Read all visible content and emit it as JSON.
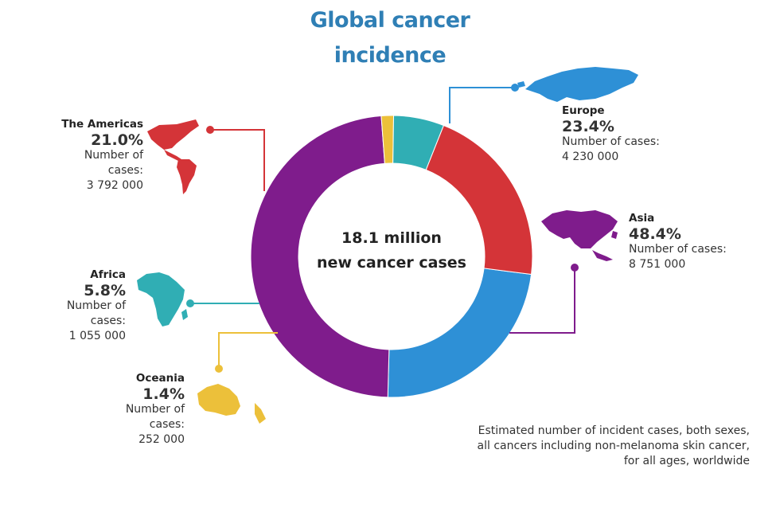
{
  "title": [
    "Global cancer",
    "incidence"
  ],
  "center": [
    "18.1 million",
    "new cancer cases"
  ],
  "footnote": [
    "Estimated number of incident cases, both sexes,",
    "all cancers including non-melanoma skin cancer,",
    "for all ages, worldwide"
  ],
  "chart_data": {
    "type": "pie",
    "donut": true,
    "title": "Global cancer incidence",
    "total_label": "18.1 million new cancer cases",
    "categories": [
      "Europe",
      "Asia",
      "Oceania",
      "Africa",
      "The Americas"
    ],
    "values": [
      23.4,
      48.4,
      1.4,
      5.8,
      21.0
    ],
    "cases": [
      "4 230 000",
      "8 751 000",
      "252 000",
      "1 055 000",
      "3 792 000"
    ],
    "colors": [
      "#2e90d6",
      "#7f1c8c",
      "#ecc03a",
      "#30aeb4",
      "#d43438"
    ],
    "legend": "none"
  },
  "labels": {
    "americas": {
      "region": "The Americas",
      "pct": "21.0%",
      "caption": "Number of cases:",
      "cases": "3 792 000"
    },
    "europe": {
      "region": "Europe",
      "pct": "23.4%",
      "caption": "Number of cases:",
      "cases": "4 230 000"
    },
    "asia": {
      "region": "Asia",
      "pct": "48.4%",
      "caption": "Number of cases:",
      "cases": "8 751 000"
    },
    "africa": {
      "region": "Africa",
      "pct": "5.8%",
      "caption": "Number of cases:",
      "cases": "1 055 000"
    },
    "oceania": {
      "region": "Oceania",
      "pct": "1.4%",
      "caption": "Number of cases:",
      "cases": "252 000"
    }
  }
}
